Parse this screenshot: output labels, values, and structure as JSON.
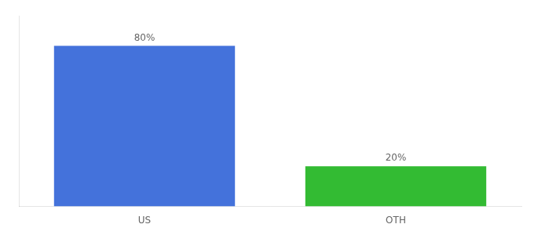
{
  "chart_data": {
    "type": "bar",
    "categories": [
      "US",
      "OTH"
    ],
    "values": [
      80,
      20
    ],
    "colors": [
      "#4472db",
      "#33bb33"
    ],
    "value_labels": [
      "80%",
      "20%"
    ],
    "data_labels": true,
    "ylim": [
      0,
      95
    ],
    "grid": false,
    "tick_labels": "x"
  }
}
